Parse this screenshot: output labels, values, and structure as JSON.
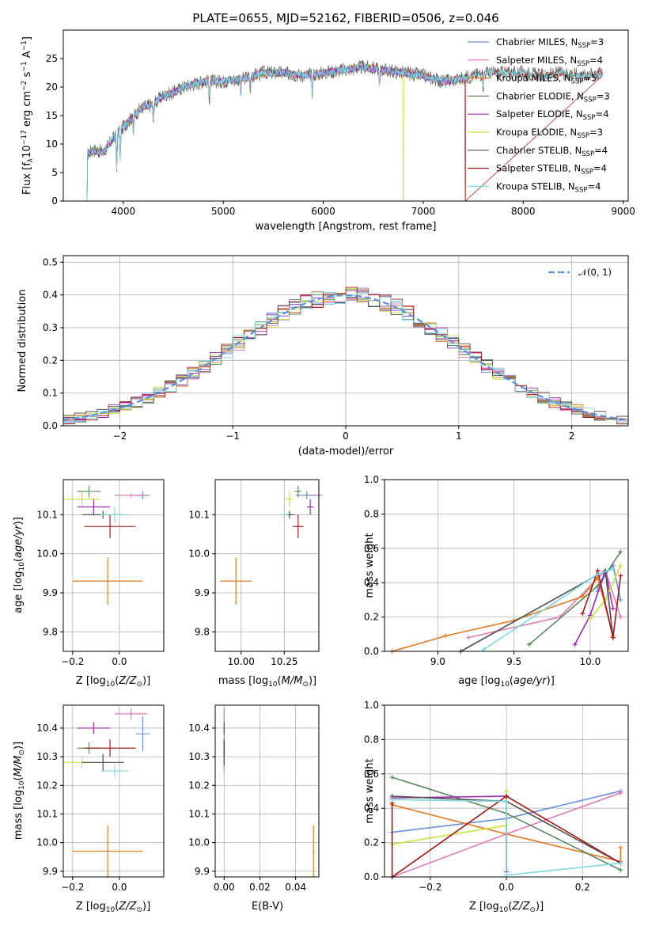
{
  "title": "PLATE=0655, MJD=52162, FIBERID=0506, z=0.046",
  "colors": {
    "Chabrier MILES": "#6a8fd8",
    "Salpeter MILES": "#e07ab5",
    "Kroupa MILES": "#e07820",
    "Chabrier ELODIE": "#5a8a5a",
    "Salpeter ELODIE": "#9a28b0",
    "Kroupa ELODIE": "#c8e040",
    "Chabrier STELIB": "#505050",
    "Salpeter STELIB": "#a01818",
    "Kroupa STELIB": "#80d8e0",
    "normal": "#5b8fd6"
  },
  "chart_data": [
    {
      "id": "spectrum",
      "type": "line",
      "xlabel": "wavelength [Angstrom, rest frame]",
      "ylabel": "Flux [f_λ10^-17 erg cm^-2 s^-1 A^-1]",
      "xlim": [
        3400,
        9050
      ],
      "ylim": [
        0,
        30
      ],
      "xticks": [
        "4000",
        "5000",
        "6000",
        "7000",
        "8000",
        "9000"
      ],
      "yticks": [
        "0",
        "5",
        "10",
        "15",
        "20",
        "25"
      ],
      "legend_position": "right",
      "legend": [
        {
          "model": "Chabrier MILES",
          "label": "Chabrier MILES, N",
          "sub": "SSP",
          "suffix": "=3"
        },
        {
          "model": "Salpeter MILES",
          "label": "Salpeter MILES, N",
          "sub": "SSP",
          "suffix": "=4"
        },
        {
          "model": "Kroupa MILES",
          "label": "Kroupa MILES, N",
          "sub": "SSP",
          "suffix": "=5"
        },
        {
          "model": "Chabrier ELODIE",
          "label": "Chabrier ELODIE, N",
          "sub": "SSP",
          "suffix": "=3"
        },
        {
          "model": "Salpeter ELODIE",
          "label": "Salpeter ELODIE, N",
          "sub": "SSP",
          "suffix": "=4"
        },
        {
          "model": "Kroupa ELODIE",
          "label": "Kroupa ELODIE, N",
          "sub": "SSP",
          "suffix": "=3"
        },
        {
          "model": "Chabrier STELIB",
          "label": "Chabrier STELIB, N",
          "sub": "SSP",
          "suffix": "=4"
        },
        {
          "model": "Salpeter STELIB",
          "label": "Salpeter STELIB, N",
          "sub": "SSP",
          "suffix": "=4"
        },
        {
          "model": "Kroupa STELIB",
          "label": "Kroupa STELIB, N",
          "sub": "SSP",
          "suffix": "=4"
        }
      ],
      "continuum": [
        [
          3630,
          8
        ],
        [
          3700,
          9
        ],
        [
          3800,
          8.5
        ],
        [
          3900,
          11
        ],
        [
          4000,
          13
        ],
        [
          4100,
          15
        ],
        [
          4200,
          16.5
        ],
        [
          4300,
          17
        ],
        [
          4400,
          18.5
        ],
        [
          4500,
          19
        ],
        [
          4600,
          20
        ],
        [
          4800,
          21
        ],
        [
          5000,
          21
        ],
        [
          5200,
          21.5
        ],
        [
          5400,
          22.5
        ],
        [
          5600,
          22.5
        ],
        [
          5800,
          22
        ],
        [
          6000,
          22.5
        ],
        [
          6200,
          23
        ],
        [
          6400,
          23.5
        ],
        [
          6600,
          23
        ],
        [
          6800,
          22.5
        ],
        [
          7000,
          22
        ],
        [
          7200,
          21
        ],
        [
          7400,
          21.5
        ],
        [
          7600,
          22.5
        ],
        [
          7800,
          22.5
        ],
        [
          8000,
          22.5
        ],
        [
          8200,
          22
        ],
        [
          8400,
          22.5
        ],
        [
          8600,
          22
        ],
        [
          8800,
          22.5
        ]
      ],
      "absorption_lines": [
        [
          3934,
          6
        ],
        [
          3969,
          5
        ],
        [
          4101,
          3
        ],
        [
          4300,
          3
        ],
        [
          4861,
          3
        ],
        [
          5175,
          3
        ],
        [
          5270,
          2
        ],
        [
          5890,
          3
        ],
        [
          6563,
          2.5
        ],
        [
          7600,
          2.5
        ]
      ],
      "drops": [
        {
          "model": "Kroupa ELODIE",
          "x": 6800
        },
        {
          "model": "Salpeter STELIB",
          "x": 7420
        },
        {
          "model": "Kroupa MILES",
          "x": 7420
        }
      ]
    },
    {
      "id": "residuals",
      "type": "step",
      "xlabel": "(data-model)/error",
      "ylabel": "Normed distribution",
      "xlim": [
        -2.5,
        2.5
      ],
      "ylim": [
        0,
        0.52
      ],
      "xticks": [
        "−2",
        "−1",
        "0",
        "1",
        "2"
      ],
      "yticks": [
        "0.0",
        "0.1",
        "0.2",
        "0.3",
        "0.4",
        "0.5"
      ],
      "grid": true,
      "legend_position": "top-right",
      "normal_label": "𝒩(0, 1)",
      "bin_width": 0.1
    },
    {
      "id": "age_vs_Z",
      "type": "errorbar",
      "xlabel": "Z [log10(Z/Z⊙)]",
      "ylabel": "age [log10(age/yr)]",
      "xlim": [
        -0.24,
        0.19
      ],
      "ylim": [
        9.75,
        10.19
      ],
      "xticks": [
        -0.2,
        0.0
      ],
      "yticks": [
        9.8,
        9.9,
        10.0,
        10.1
      ],
      "xtick_labels": [
        "−0.2",
        "0.0"
      ],
      "ytick_labels": [
        "9.8",
        "9.9",
        "10.0",
        "10.1"
      ],
      "grid": true
    },
    {
      "id": "age_vs_mass",
      "type": "errorbar",
      "xlabel": "mass [log10(M/M⊙)]",
      "ylabel": "",
      "xlim": [
        9.85,
        10.45
      ],
      "ylim": [
        9.75,
        10.19
      ],
      "xticks": [
        10.0,
        10.25
      ],
      "yticks": [
        9.8,
        9.9,
        10.0,
        10.1
      ],
      "xtick_labels": [
        "10.00",
        "10.25"
      ],
      "ytick_labels": [
        "9.8",
        "9.9",
        "10.0",
        "10.1"
      ],
      "grid": true
    },
    {
      "id": "mass_weight_vs_age",
      "type": "line",
      "xlabel": "age [log10(age/yr)]",
      "ylabel": "mass weight",
      "xlim": [
        8.65,
        10.25
      ],
      "ylim": [
        0,
        1
      ],
      "xticks": [
        9.0,
        9.5,
        10.0
      ],
      "yticks": [
        0,
        0.2,
        0.4,
        0.6,
        0.8,
        1.0
      ],
      "xtick_labels": [
        "9.0",
        "9.5",
        "10.0"
      ],
      "ytick_labels": [
        "0.0",
        "0.2",
        "0.4",
        "0.6",
        "0.8",
        "1.0"
      ],
      "grid": true,
      "series": [
        {
          "model": "Chabrier MILES",
          "points": [
            [
              10.05,
              0.35
            ],
            [
              10.1,
              0.45
            ],
            [
              10.15,
              0.5
            ],
            [
              10.2,
              0.3
            ]
          ]
        },
        {
          "model": "Salpeter MILES",
          "points": [
            [
              9.2,
              0.08
            ],
            [
              9.8,
              0.2
            ],
            [
              10.1,
              0.47
            ],
            [
              10.2,
              0.2
            ]
          ]
        },
        {
          "model": "Kroupa MILES",
          "points": [
            [
              8.7,
              0.0
            ],
            [
              9.05,
              0.09
            ],
            [
              9.5,
              0.18
            ],
            [
              9.95,
              0.32
            ],
            [
              10.05,
              0.43
            ],
            [
              10.15,
              0.09
            ]
          ]
        },
        {
          "model": "Chabrier ELODIE",
          "points": [
            [
              9.6,
              0.04
            ],
            [
              10.05,
              0.38
            ],
            [
              10.2,
              0.58
            ]
          ]
        },
        {
          "model": "Salpeter ELODIE",
          "points": [
            [
              9.9,
              0.04
            ],
            [
              10.0,
              0.21
            ],
            [
              10.1,
              0.47
            ],
            [
              10.15,
              0.25
            ]
          ]
        },
        {
          "model": "Kroupa ELODIE",
          "points": [
            [
              10.0,
              0.19
            ],
            [
              10.1,
              0.3
            ],
            [
              10.2,
              0.5
            ]
          ]
        },
        {
          "model": "Chabrier STELIB",
          "points": [
            [
              9.15,
              0.0
            ],
            [
              10.1,
              0.47
            ],
            [
              10.15,
              0.08
            ]
          ]
        },
        {
          "model": "Salpeter STELIB",
          "points": [
            [
              9.95,
              0.22
            ],
            [
              10.05,
              0.47
            ],
            [
              10.15,
              0.08
            ],
            [
              10.2,
              0.44
            ]
          ]
        },
        {
          "model": "Kroupa STELIB",
          "points": [
            [
              9.3,
              0.01
            ],
            [
              10.05,
              0.45
            ],
            [
              10.15,
              0.48
            ]
          ]
        }
      ]
    },
    {
      "id": "mass_vs_Z",
      "type": "errorbar",
      "xlabel": "Z [log10(Z/Z⊙)]",
      "ylabel": "mass [log10(M/M⊙)]",
      "xlim": [
        -0.24,
        0.19
      ],
      "ylim": [
        9.88,
        10.48
      ],
      "xticks": [
        -0.2,
        0.0
      ],
      "yticks": [
        9.9,
        10.0,
        10.1,
        10.2,
        10.3,
        10.4
      ],
      "xtick_labels": [
        "−0.2",
        "0.0"
      ],
      "ytick_labels": [
        "9.9",
        "10.0",
        "10.1",
        "10.2",
        "10.3",
        "10.4"
      ],
      "grid": true
    },
    {
      "id": "mass_vs_EBV",
      "type": "errorbar",
      "xlabel": "E(B-V)",
      "ylabel": "",
      "xlim": [
        -0.005,
        0.053
      ],
      "ylim": [
        9.88,
        10.48
      ],
      "xticks": [
        0.0,
        0.02,
        0.04
      ],
      "yticks": [
        9.9,
        10.0,
        10.1,
        10.2,
        10.3,
        10.4
      ],
      "xtick_labels": [
        "0.00",
        "0.02",
        "0.04"
      ],
      "ytick_labels": [
        "9.9",
        "10.0",
        "10.1",
        "10.2",
        "10.3",
        "10.4"
      ],
      "grid": true
    },
    {
      "id": "mass_weight_vs_Z",
      "type": "line",
      "xlabel": "Z [log10(Z/Z⊙)]",
      "ylabel": "mass weight",
      "xlim": [
        -0.32,
        0.32
      ],
      "ylim": [
        0,
        1
      ],
      "xticks": [
        -0.2,
        0.0,
        0.2
      ],
      "yticks": [
        0,
        0.2,
        0.4,
        0.6,
        0.8,
        1.0
      ],
      "xtick_labels": [
        "−0.2",
        "0.0",
        "0.2"
      ],
      "ytick_labels": [
        "0.0",
        "0.2",
        "0.4",
        "0.6",
        "0.8",
        "1.0"
      ],
      "grid": true,
      "series": [
        {
          "model": "Chabrier MILES",
          "points": [
            [
              -0.3,
              0.26
            ],
            [
              0.0,
              0.34
            ],
            [
              0.3,
              0.5
            ]
          ]
        },
        {
          "model": "Salpeter MILES",
          "points": [
            [
              -0.3,
              0.0
            ],
            [
              0.0,
              0.25
            ],
            [
              0.3,
              0.49
            ]
          ]
        },
        {
          "model": "Kroupa MILES",
          "points": [
            [
              -0.3,
              0.42
            ],
            [
              0.0,
              0.25
            ],
            [
              0.3,
              0.09
            ],
            [
              0.3,
              0.17
            ]
          ]
        },
        {
          "model": "Chabrier ELODIE",
          "points": [
            [
              -0.3,
              0.58
            ],
            [
              0.0,
              0.37
            ],
            [
              0.3,
              0.04
            ]
          ]
        },
        {
          "model": "Salpeter ELODIE",
          "points": [
            [
              -0.3,
              0.46
            ],
            [
              0.0,
              0.47
            ],
            [
              0.0,
              0.03
            ]
          ]
        },
        {
          "model": "Kroupa ELODIE",
          "points": [
            [
              -0.3,
              0.19
            ],
            [
              0.0,
              0.3
            ],
            [
              0.0,
              0.5
            ]
          ]
        },
        {
          "model": "Chabrier STELIB",
          "points": [
            [
              -0.3,
              0.47
            ],
            [
              0.0,
              0.44
            ],
            [
              0.3,
              0.08
            ]
          ]
        },
        {
          "model": "Salpeter STELIB",
          "points": [
            [
              -0.3,
              0.43
            ],
            [
              -0.3,
              0.0
            ],
            [
              0.0,
              0.47
            ],
            [
              0.3,
              0.08
            ]
          ]
        },
        {
          "model": "Kroupa STELIB",
          "points": [
            [
              -0.3,
              0.45
            ],
            [
              0.0,
              0.44
            ],
            [
              0.0,
              0.01
            ],
            [
              0.3,
              0.08
            ]
          ]
        }
      ]
    }
  ],
  "fits": [
    {
      "model": "Chabrier MILES",
      "Z": 0.1,
      "Zerr": 0.03,
      "age": 10.15,
      "ageErr": 0.01,
      "mass": 10.38,
      "massErr": 0.06,
      "ebv": 0.0,
      "ebvErr": 0.0003
    },
    {
      "model": "Salpeter MILES",
      "Z": 0.05,
      "Zerr": 0.07,
      "age": 10.15,
      "ageErr": 0.005,
      "mass": 10.45,
      "massErr": 0.02,
      "ebv": 0.0,
      "ebvErr": 0.0003
    },
    {
      "model": "Kroupa MILES",
      "Z": -0.05,
      "Zerr": 0.15,
      "age": 9.93,
      "ageErr": 0.06,
      "mass": 9.97,
      "massErr": 0.09,
      "ebv": 0.05,
      "ebvErr": 0.0004
    },
    {
      "model": "Chabrier ELODIE",
      "Z": -0.13,
      "Zerr": 0.05,
      "age": 10.16,
      "ageErr": 0.015,
      "mass": 10.33,
      "massErr": 0.02,
      "ebv": 0.0,
      "ebvErr": 0.0003
    },
    {
      "model": "Salpeter ELODIE",
      "Z": -0.11,
      "Zerr": 0.07,
      "age": 10.12,
      "ageErr": 0.02,
      "mass": 10.4,
      "massErr": 0.02,
      "ebv": 0.0,
      "ebvErr": 0.0003
    },
    {
      "model": "Kroupa ELODIE",
      "Z": -0.16,
      "Zerr": 0.08,
      "age": 10.14,
      "ageErr": 0.02,
      "mass": 10.28,
      "massErr": 0.02,
      "ebv": 0.0,
      "ebvErr": 0.0003
    },
    {
      "model": "Chabrier STELIB",
      "Z": -0.07,
      "Zerr": 0.09,
      "age": 10.1,
      "ageErr": 0.01,
      "mass": 10.28,
      "massErr": 0.03,
      "ebv": 0.0,
      "ebvErr": 0.0003
    },
    {
      "model": "Salpeter STELIB",
      "Z": -0.04,
      "Zerr": 0.11,
      "age": 10.07,
      "ageErr": 0.03,
      "mass": 10.33,
      "massErr": 0.03,
      "ebv": 0.0,
      "ebvErr": 0.0003
    },
    {
      "model": "Kroupa STELIB",
      "Z": -0.02,
      "Zerr": 0.06,
      "age": 10.1,
      "ageErr": 0.02,
      "mass": 10.25,
      "massErr": 0.02,
      "ebv": 0.0,
      "ebvErr": 0.0003
    }
  ]
}
